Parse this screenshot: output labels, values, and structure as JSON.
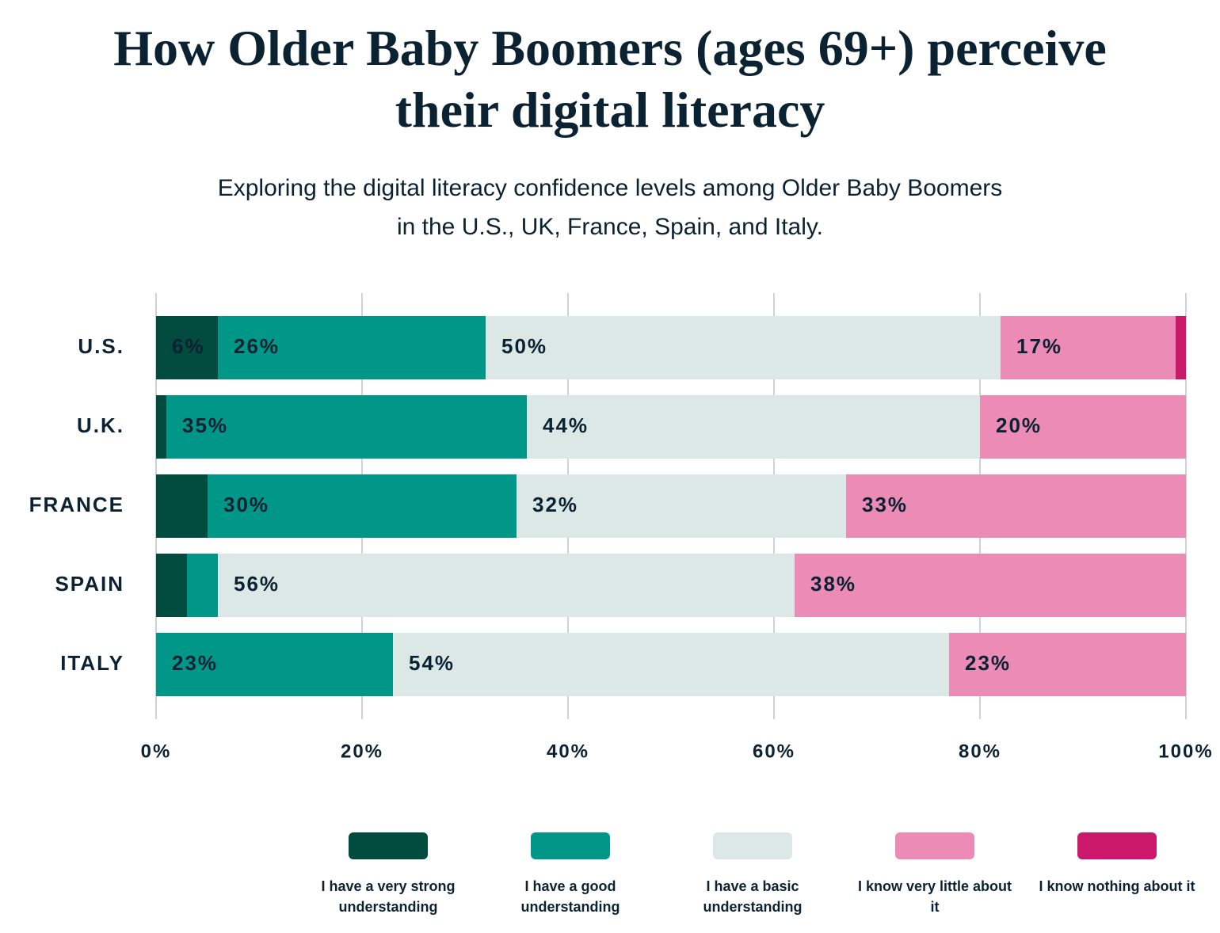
{
  "chart_data": {
    "type": "stacked-bar-horizontal",
    "title": "How Older Baby Boomers (ages 69+) perceive their digital literacy",
    "subtitle": "Exploring the digital literacy confidence levels among Older Baby Boomers in the U.S., UK, France, Spain, and Italy.",
    "categories": [
      "U.S.",
      "U.K.",
      "FRANCE",
      "SPAIN",
      "ITALY"
    ],
    "series": [
      {
        "name": "I have a very strong understanding",
        "color": "#024b3f",
        "values": [
          6,
          1,
          5,
          3,
          0
        ],
        "value_labels": [
          "6%",
          null,
          null,
          null,
          null
        ]
      },
      {
        "name": "I have a good understanding",
        "color": "#009688",
        "values": [
          26,
          35,
          30,
          3,
          23
        ],
        "value_labels": [
          "26%",
          "35%",
          "30%",
          null,
          "23%"
        ]
      },
      {
        "name": "I have a basic understanding",
        "color": "#dbe8e6",
        "values": [
          50,
          44,
          32,
          56,
          54
        ],
        "value_labels": [
          "50%",
          "44%",
          "32%",
          "56%",
          "54%"
        ]
      },
      {
        "name": "I know very little about it",
        "color": "#ec8bb5",
        "values": [
          17,
          20,
          33,
          38,
          23
        ],
        "value_labels": [
          "17%",
          "20%",
          "33%",
          "38%",
          "23%"
        ]
      },
      {
        "name": "I know nothing about it",
        "color": "#cc186b",
        "values": [
          1,
          0,
          0,
          0,
          0
        ],
        "value_labels": [
          null,
          null,
          null,
          null,
          null
        ]
      }
    ],
    "xlim": [
      0,
      100
    ],
    "xticks": [
      {
        "value": 0,
        "label": "0%"
      },
      {
        "value": 20,
        "label": "20%"
      },
      {
        "value": 40,
        "label": "40%"
      },
      {
        "value": 60,
        "label": "60%"
      },
      {
        "value": 80,
        "label": "80%"
      },
      {
        "value": 100,
        "label": "100%"
      }
    ],
    "grid": true
  }
}
